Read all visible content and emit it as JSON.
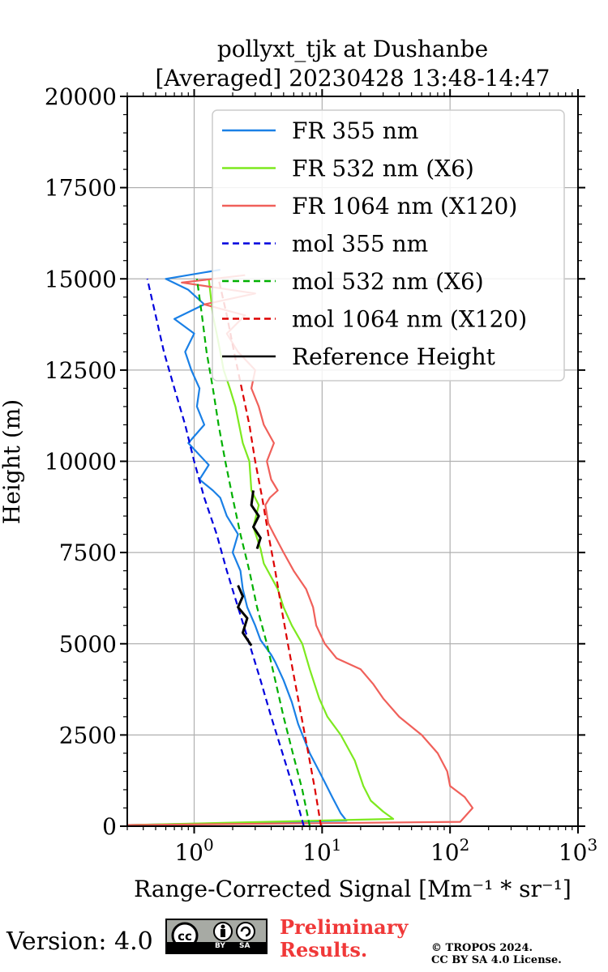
{
  "chart_data": {
    "type": "line",
    "title_line1": "pollyxt_tjk at Dushanbe",
    "title_line2": "[Averaged] 20230428 13:48-14:47",
    "xlabel": "Range-Corrected Signal [Mm⁻¹ * sr⁻¹]",
    "ylabel": "Height (m)",
    "xscale": "log",
    "xlim": [
      0.3,
      1000
    ],
    "ylim": [
      0,
      20000
    ],
    "yticks": [
      "0",
      "2500",
      "5000",
      "7500",
      "10000",
      "12500",
      "15000",
      "17500",
      "20000"
    ],
    "xtick_base": "10",
    "xtick_exponents": [
      "0",
      "1",
      "2",
      "3"
    ],
    "grid": true,
    "legend_position": "upper right",
    "series": [
      {
        "name": "FR 355 nm",
        "color": "#1a80e6",
        "style": "solid",
        "points": [
          [
            0.3,
            30
          ],
          [
            15.5,
            150
          ],
          [
            14,
            350
          ],
          [
            12,
            800
          ],
          [
            10.5,
            1200
          ],
          [
            9.5,
            1500
          ],
          [
            8,
            2000
          ],
          [
            6.5,
            2800
          ],
          [
            5.8,
            3400
          ],
          [
            5,
            4000
          ],
          [
            4.3,
            4500
          ],
          [
            4,
            4700
          ],
          [
            3.3,
            5100
          ],
          [
            3,
            5500
          ],
          [
            2.6,
            6000
          ],
          [
            2.4,
            6500
          ],
          [
            2.3,
            7000
          ],
          [
            2.0,
            7500
          ],
          [
            2.2,
            8000
          ],
          [
            1.8,
            8500
          ],
          [
            1.6,
            9000
          ],
          [
            1.4,
            9200
          ],
          [
            1.1,
            9500
          ],
          [
            1.3,
            9900
          ],
          [
            0.9,
            10500
          ],
          [
            1.2,
            11000
          ],
          [
            1.05,
            11500
          ],
          [
            1.1,
            12000
          ],
          [
            0.95,
            12500
          ],
          [
            0.85,
            13000
          ],
          [
            1.0,
            13500
          ],
          [
            0.7,
            13900
          ],
          [
            1.2,
            14300
          ],
          [
            0.9,
            14700
          ],
          [
            0.6,
            15000
          ],
          [
            1.6,
            15250
          ]
        ]
      },
      {
        "name": "FR 532 nm (X6)",
        "color": "#7de91f",
        "style": "solid",
        "points": [
          [
            0.3,
            30
          ],
          [
            36,
            200
          ],
          [
            30,
            400
          ],
          [
            24,
            700
          ],
          [
            21,
            1100
          ],
          [
            18,
            1800
          ],
          [
            14,
            2500
          ],
          [
            11,
            3000
          ],
          [
            9.5,
            3500
          ],
          [
            8,
            4300
          ],
          [
            7,
            5000
          ],
          [
            5.8,
            5500
          ],
          [
            5,
            6000
          ],
          [
            4.5,
            6500
          ],
          [
            3.5,
            7200
          ],
          [
            3.3,
            7600
          ],
          [
            2.9,
            8200
          ],
          [
            3.2,
            8800
          ],
          [
            2.8,
            9200
          ],
          [
            2.7,
            10000
          ],
          [
            2.4,
            10500
          ],
          [
            2.1,
            11500
          ],
          [
            1.9,
            12000
          ],
          [
            1.7,
            12500
          ],
          [
            1.6,
            13000
          ],
          [
            1.5,
            13500
          ],
          [
            1.4,
            14000
          ],
          [
            1.35,
            14500
          ],
          [
            1.3,
            15000
          ]
        ]
      },
      {
        "name": "FR 1064 nm (X120)",
        "color": "#f0605a",
        "style": "solid",
        "points": [
          [
            0.3,
            30
          ],
          [
            120,
            120
          ],
          [
            150,
            500
          ],
          [
            130,
            800
          ],
          [
            100,
            1100
          ],
          [
            95,
            1500
          ],
          [
            80,
            2000
          ],
          [
            60,
            2500
          ],
          [
            40,
            3000
          ],
          [
            30,
            3500
          ],
          [
            25,
            3900
          ],
          [
            20,
            4300
          ],
          [
            13,
            4600
          ],
          [
            10.5,
            5000
          ],
          [
            9,
            5500
          ],
          [
            8.5,
            6000
          ],
          [
            7.5,
            6500
          ],
          [
            6,
            7000
          ],
          [
            5,
            7500
          ],
          [
            4.2,
            8000
          ],
          [
            3.8,
            8300
          ],
          [
            3.6,
            8800
          ],
          [
            3.9,
            9000
          ],
          [
            4.5,
            9200
          ],
          [
            4,
            9500
          ],
          [
            3.7,
            10000
          ],
          [
            4.2,
            10500
          ],
          [
            3.5,
            11000
          ],
          [
            3.2,
            11500
          ],
          [
            2.8,
            12000
          ],
          [
            3.0,
            12500
          ],
          [
            2.2,
            13000
          ],
          [
            1.8,
            13500
          ],
          [
            2.5,
            14000
          ],
          [
            1.2,
            14300
          ],
          [
            3,
            14600
          ],
          [
            0.8,
            14900
          ],
          [
            2.5,
            15100
          ]
        ]
      },
      {
        "name": "mol 355 nm",
        "color": "#0000dd",
        "style": "dashed",
        "points": [
          [
            7.2,
            0
          ],
          [
            6.0,
            1000
          ],
          [
            4.9,
            2000
          ],
          [
            4.0,
            3000
          ],
          [
            3.3,
            4000
          ],
          [
            2.7,
            5000
          ],
          [
            2.2,
            6000
          ],
          [
            1.8,
            7000
          ],
          [
            1.5,
            8000
          ],
          [
            1.2,
            9000
          ],
          [
            1.0,
            10000
          ],
          [
            0.85,
            11000
          ],
          [
            0.7,
            12000
          ],
          [
            0.58,
            13000
          ],
          [
            0.5,
            14000
          ],
          [
            0.43,
            15000
          ]
        ]
      },
      {
        "name": "mol 532 nm (X6)",
        "color": "#00b000",
        "style": "dashed",
        "points": [
          [
            8.0,
            0
          ],
          [
            7.0,
            1000
          ],
          [
            5.9,
            2000
          ],
          [
            5.0,
            3000
          ],
          [
            4.3,
            4000
          ],
          [
            3.7,
            5000
          ],
          [
            3.1,
            6000
          ],
          [
            2.7,
            7000
          ],
          [
            2.3,
            8000
          ],
          [
            2.0,
            9000
          ],
          [
            1.75,
            10000
          ],
          [
            1.55,
            11000
          ],
          [
            1.4,
            12000
          ],
          [
            1.25,
            13000
          ],
          [
            1.15,
            14000
          ],
          [
            1.05,
            15000
          ]
        ]
      },
      {
        "name": "mol 1064 nm (X120)",
        "color": "#dd0000",
        "style": "dashed",
        "points": [
          [
            9.8,
            0
          ],
          [
            8.8,
            1000
          ],
          [
            7.8,
            2000
          ],
          [
            6.9,
            3000
          ],
          [
            6.1,
            4000
          ],
          [
            5.4,
            5000
          ],
          [
            4.8,
            6000
          ],
          [
            4.3,
            7000
          ],
          [
            3.8,
            8000
          ],
          [
            3.4,
            9000
          ],
          [
            3.0,
            10000
          ],
          [
            2.7,
            11000
          ],
          [
            2.35,
            12000
          ],
          [
            2.05,
            13000
          ],
          [
            1.8,
            14000
          ],
          [
            1.55,
            15000
          ]
        ]
      },
      {
        "name": "Reference Height",
        "color": "#000000",
        "style": "solid",
        "points": [],
        "segments": [
          [
            [
              2.8,
              4950
            ],
            [
              2.4,
              5300
            ],
            [
              2.6,
              5700
            ],
            [
              2.2,
              6000
            ],
            [
              2.4,
              6300
            ],
            [
              2.2,
              6600
            ]
          ],
          [
            [
              3.1,
              7600
            ],
            [
              3.3,
              7900
            ],
            [
              2.9,
              8200
            ],
            [
              3.2,
              8500
            ],
            [
              2.8,
              8800
            ],
            [
              2.9,
              9200
            ]
          ]
        ]
      }
    ]
  },
  "footer": {
    "version": "Version: 4.0",
    "cc_by": "BY",
    "cc_sa": "SA",
    "preliminary_line1": "Preliminary",
    "preliminary_line2": "Results.",
    "copyright_line1": "© TROPOS 2024.",
    "copyright_line2": "CC BY SA 4.0 License."
  }
}
